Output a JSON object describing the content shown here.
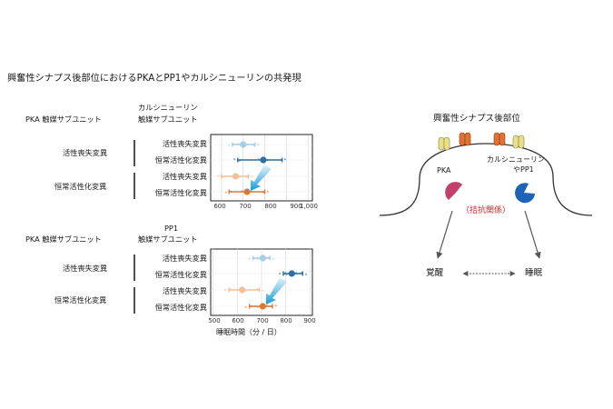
{
  "title": "興奮性シナプス後部位におけるPKAとPP1やカルシニューリンの共発現",
  "panel1": {
    "col_left": "PKA 触媒サブユニット",
    "col_right": [
      "カルシニューリン",
      "触媒サブユニット"
    ],
    "groups": [
      "活性喪失変異",
      "恒常活性化変異"
    ],
    "rows": [
      "活性喪失変異",
      "恒常活性化変異",
      "活性喪失変異",
      "恒常活性化変異"
    ],
    "x_ticks": [
      "600",
      "700",
      "800",
      "900",
      "1,000"
    ]
  },
  "panel2": {
    "header_top": "PP1",
    "col_left": "PKA 触媒サブユニット",
    "col_right": "触媒サブユニット",
    "groups": [
      "活性喪失変異",
      "恒常活性化変異"
    ],
    "rows": [
      "活性喪失変異",
      "恒常活性化変異",
      "活性喪失変異",
      "恒常活性化変異"
    ],
    "x_ticks": [
      "500",
      "600",
      "700",
      "800",
      "900"
    ],
    "x_label": "睡眠時間（分 / 日）"
  },
  "chart_data": [
    {
      "type": "scatter",
      "title": "",
      "xlabel": "",
      "xlim": [
        550,
        1020
      ],
      "x_ticks": [
        600,
        700,
        800,
        900,
        1000
      ],
      "rows": [
        {
          "label": "活性喪失変異",
          "group": "活性喪失変異",
          "mean": 700,
          "ci": [
            650,
            755
          ],
          "color": "#a9cde4"
        },
        {
          "label": "恒常活性化変異",
          "group": "活性喪失変異",
          "mean": 793,
          "ci": [
            675,
            880
          ],
          "color": "#2e6ea0"
        },
        {
          "label": "活性喪失変異",
          "group": "恒常活性化変異",
          "mean": 665,
          "ci": [
            600,
            725
          ],
          "color": "#f1c199"
        },
        {
          "label": "恒常活性化変異",
          "group": "恒常活性化変異",
          "mean": 718,
          "ci": [
            635,
            800
          ],
          "color": "#e0772e"
        }
      ]
    },
    {
      "type": "scatter",
      "title": "",
      "xlabel": "睡眠時間（分 / 日）",
      "xlim": [
        490,
        910
      ],
      "x_ticks": [
        500,
        600,
        700,
        800,
        900
      ],
      "rows": [
        {
          "label": "活性喪失変異",
          "group": "活性喪失変異",
          "mean": 705,
          "ci": [
            665,
            735
          ],
          "color": "#a9cde4"
        },
        {
          "label": "恒常活性化変異",
          "group": "活性喪失変異",
          "mean": 825,
          "ci": [
            790,
            870
          ],
          "color": "#2e6ea0"
        },
        {
          "label": "活性喪失変異",
          "group": "恒常活性化変異",
          "mean": 620,
          "ci": [
            565,
            690
          ],
          "color": "#f1c199"
        },
        {
          "label": "恒常活性化変異",
          "group": "恒常活性化変異",
          "mean": 705,
          "ci": [
            650,
            745
          ],
          "color": "#e0772e"
        }
      ]
    }
  ],
  "diagram": {
    "title": "興奮性シナプス後部位",
    "pka_label": "PKA",
    "cn_label": [
      "カルシニューリン",
      "やPP1"
    ],
    "antagonism": "（拮抗関係）",
    "wake": "覚醒",
    "sleep": "睡眠",
    "colors": {
      "pka": "#c2416b",
      "cn": "#1d63b8",
      "antagonism": "#d6262b"
    }
  }
}
